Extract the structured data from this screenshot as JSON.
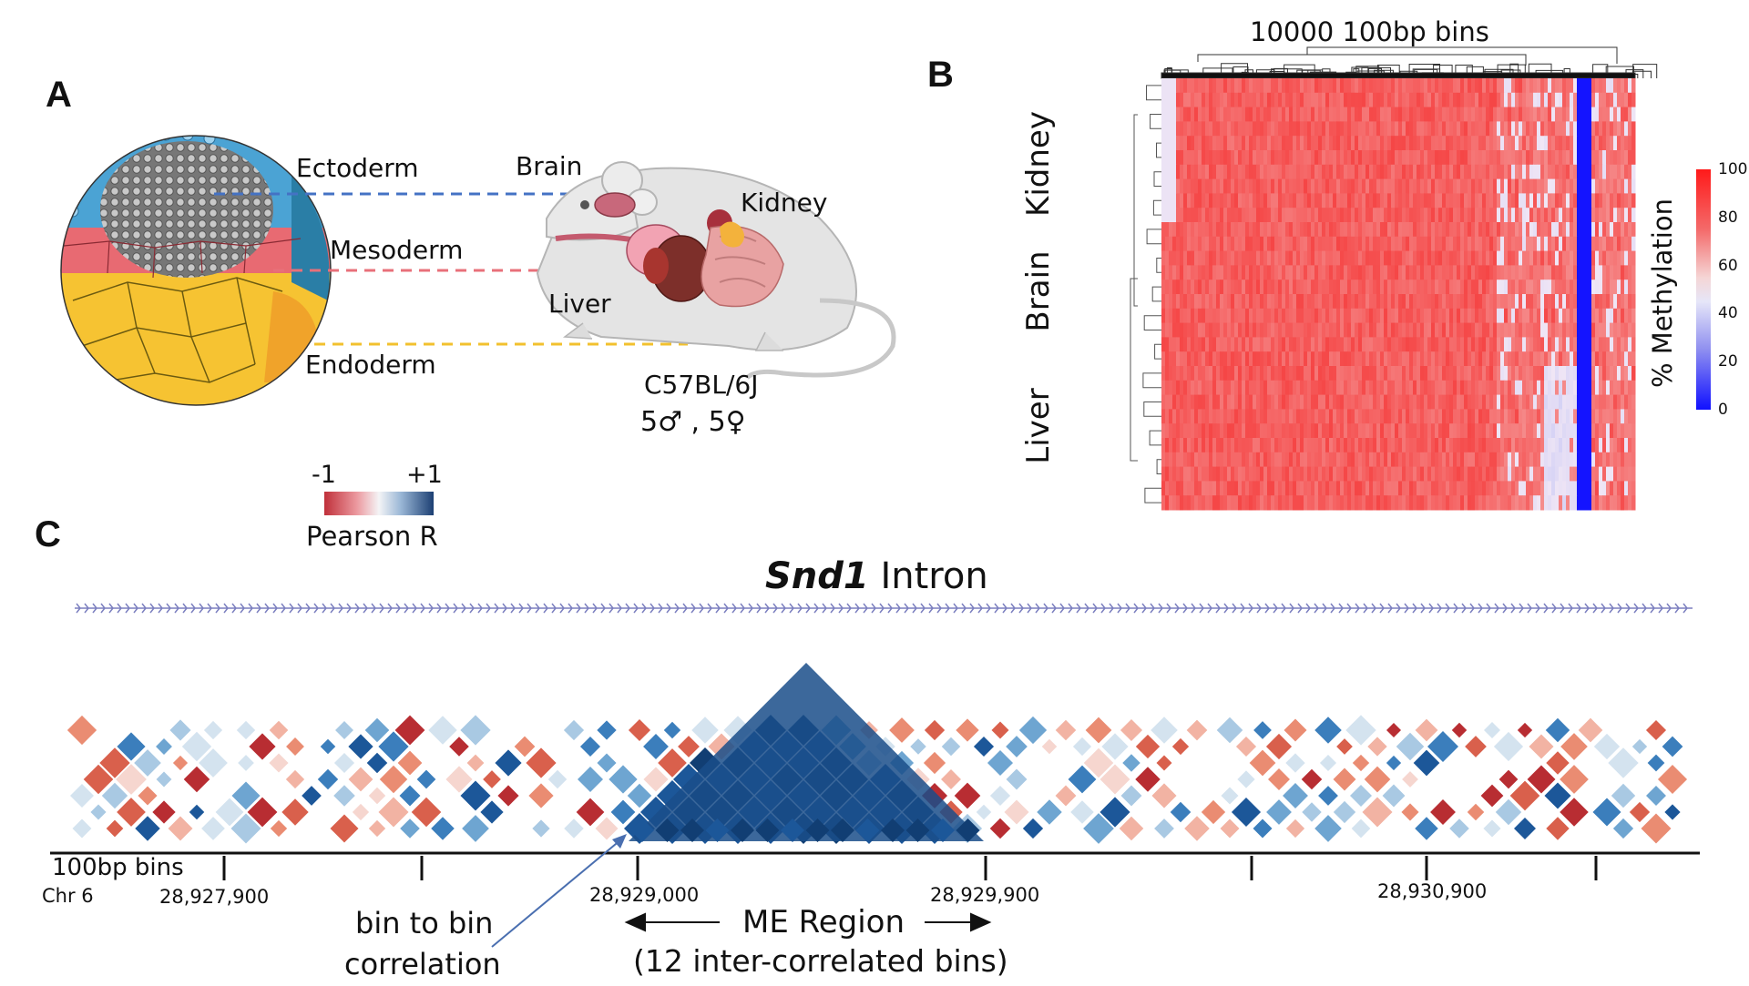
{
  "panel_a": {
    "letter": "A",
    "labels": {
      "ectoderm": "Ectoderm",
      "mesoderm": "Mesoderm",
      "endoderm": "Endoderm",
      "brain": "Brain",
      "kidney": "Kidney",
      "liver": "Liver"
    },
    "strain": "C57BL/6J",
    "sexes": "5♂ , 5♀",
    "colors": {
      "ectoderm": "#4472c4",
      "mesoderm": "#e8707a",
      "endoderm": "#f2c12e"
    }
  },
  "panel_b": {
    "letter": "B",
    "title": "10000 100bp bins",
    "row_groups": [
      "Kidney",
      "Brain",
      "Liver"
    ],
    "legend_title": "% Methylation",
    "legend_ticks": [
      "100",
      "80",
      "60",
      "40",
      "20",
      "0"
    ]
  },
  "panel_c": {
    "letter": "C",
    "legend": {
      "min": "-1",
      "max": "+1",
      "title": "Pearson R"
    },
    "title_gene": "Snd1",
    "title_rest": " Intron",
    "axis_label": "100bp bins",
    "chrom": "Chr 6",
    "ticks": [
      "28,927,900",
      "28,929,000",
      "28,929,900",
      "28,930,900"
    ],
    "annotation": {
      "line1": "bin to bin",
      "line2": "correlation"
    },
    "me_region": {
      "line1": "ME Region",
      "line2": "(12 inter-correlated bins)"
    }
  }
}
